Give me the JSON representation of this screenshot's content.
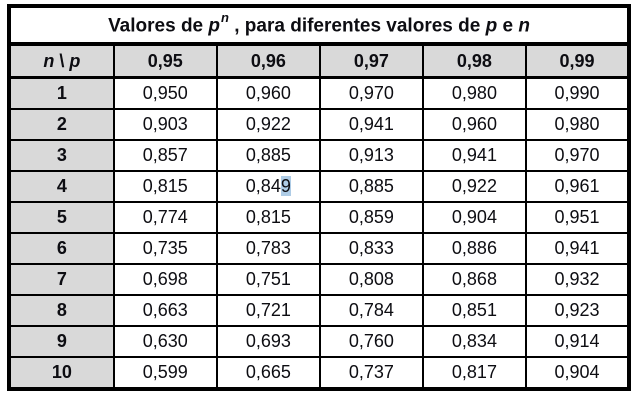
{
  "table": {
    "title": {
      "prefix": "Valores de ",
      "base_symbol": "p",
      "exponent_symbol": "n",
      "middle": " , para diferentes valores de ",
      "p_symbol": "p",
      "conjunction": " e ",
      "n_symbol": "n"
    },
    "corner_header": {
      "n_label": "n",
      "separator": " \\ ",
      "p_label": "p"
    },
    "column_headers": [
      "0,95",
      "0,96",
      "0,97",
      "0,98",
      "0,99"
    ],
    "rows": [
      {
        "n": "1",
        "values": [
          "0,950",
          "0,960",
          "0,970",
          "0,980",
          "0,990"
        ]
      },
      {
        "n": "2",
        "values": [
          "0,903",
          "0,922",
          "0,941",
          "0,960",
          "0,980"
        ]
      },
      {
        "n": "3",
        "values": [
          "0,857",
          "0,885",
          "0,913",
          "0,941",
          "0,970"
        ]
      },
      {
        "n": "4",
        "values": [
          "0,815",
          "0,849",
          "0,885",
          "0,922",
          "0,961"
        ]
      },
      {
        "n": "5",
        "values": [
          "0,774",
          "0,815",
          "0,859",
          "0,904",
          "0,951"
        ]
      },
      {
        "n": "6",
        "values": [
          "0,735",
          "0,783",
          "0,833",
          "0,886",
          "0,941"
        ]
      },
      {
        "n": "7",
        "values": [
          "0,698",
          "0,751",
          "0,808",
          "0,868",
          "0,932"
        ]
      },
      {
        "n": "8",
        "values": [
          "0,663",
          "0,721",
          "0,784",
          "0,851",
          "0,923"
        ]
      },
      {
        "n": "9",
        "values": [
          "0,630",
          "0,693",
          "0,760",
          "0,834",
          "0,914"
        ]
      },
      {
        "n": "10",
        "values": [
          "0,599",
          "0,665",
          "0,737",
          "0,817",
          "0,904"
        ]
      }
    ],
    "highlight": {
      "row_index": 3,
      "col_index": 1,
      "prefix": "0,84",
      "highlighted_text": "9",
      "color": "#aecce6"
    },
    "colors": {
      "header_bg": "#d9d9d9",
      "border": "#000000",
      "text": "#0d0d12",
      "cell_bg": "#ffffff"
    }
  },
  "chart_data": {
    "type": "table",
    "title": "Valores de p^n, para diferentes valores de p e n",
    "categories": [
      "0,95",
      "0,96",
      "0,97",
      "0,98",
      "0,99"
    ],
    "row_labels": [
      "1",
      "2",
      "3",
      "4",
      "5",
      "6",
      "7",
      "8",
      "9",
      "10"
    ],
    "series": [
      {
        "name": "p=0,95",
        "values": [
          0.95,
          0.903,
          0.857,
          0.815,
          0.774,
          0.735,
          0.698,
          0.663,
          0.63,
          0.599
        ]
      },
      {
        "name": "p=0,96",
        "values": [
          0.96,
          0.922,
          0.885,
          0.849,
          0.815,
          0.783,
          0.751,
          0.721,
          0.693,
          0.665
        ]
      },
      {
        "name": "p=0,97",
        "values": [
          0.97,
          0.941,
          0.913,
          0.885,
          0.859,
          0.833,
          0.808,
          0.784,
          0.76,
          0.737
        ]
      },
      {
        "name": "p=0,98",
        "values": [
          0.98,
          0.96,
          0.941,
          0.922,
          0.904,
          0.886,
          0.868,
          0.851,
          0.834,
          0.817
        ]
      },
      {
        "name": "p=0,99",
        "values": [
          0.99,
          0.98,
          0.97,
          0.961,
          0.951,
          0.941,
          0.932,
          0.923,
          0.914,
          0.904
        ]
      }
    ]
  }
}
